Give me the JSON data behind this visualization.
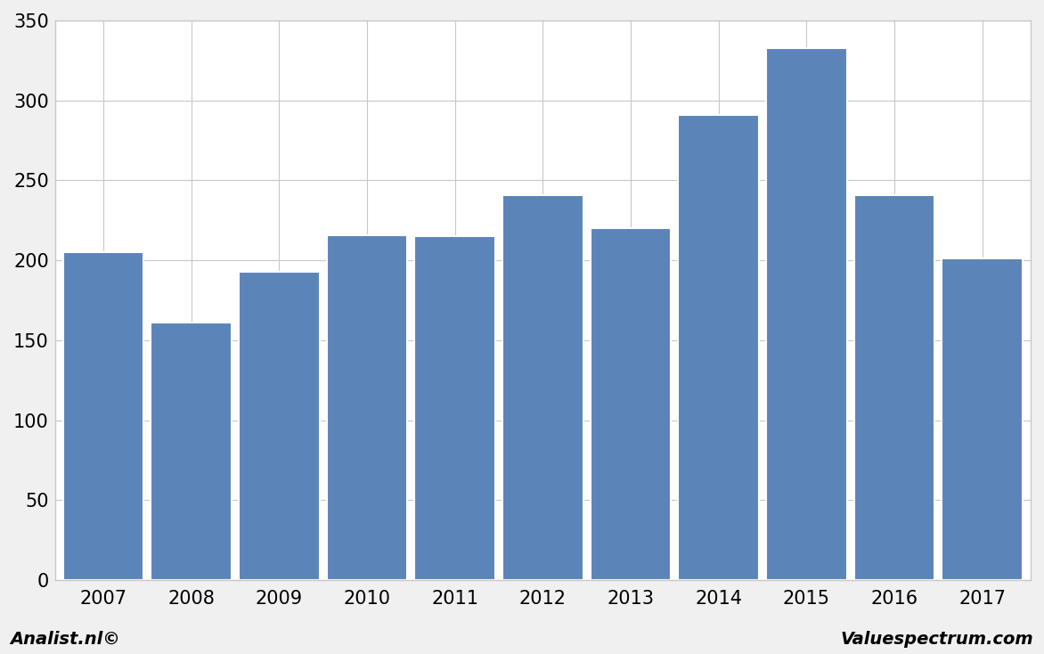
{
  "categories": [
    "2007",
    "2008",
    "2009",
    "2010",
    "2011",
    "2012",
    "2013",
    "2014",
    "2015",
    "2016",
    "2017"
  ],
  "values": [
    205,
    161,
    193,
    216,
    215,
    241,
    220,
    291,
    333,
    241,
    201
  ],
  "bar_color": "#5b84b8",
  "bar_edge_color": "#ffffff",
  "bar_edge_width": 1.5,
  "ylim": [
    0,
    350
  ],
  "yticks": [
    0,
    50,
    100,
    150,
    200,
    250,
    300,
    350
  ],
  "background_color": "#f0f0f0",
  "plot_background_color": "#ffffff",
  "grid_color": "#c8c8c8",
  "grid_linewidth": 0.8,
  "bottom_left_text": "Analist.nl©",
  "bottom_right_text": "Valuespectrum.com",
  "footer_fontsize": 14,
  "tick_fontsize": 15,
  "bar_width": 0.92
}
